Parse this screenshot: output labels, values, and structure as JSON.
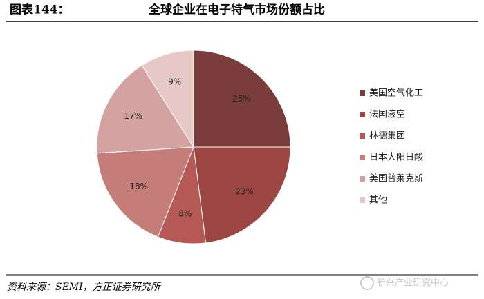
{
  "chart_data": {
    "type": "pie",
    "figure_label": "图表144：",
    "title": "全球企业在电子特气市场份额占比",
    "categories": [
      "美国空气化工",
      "法国液空",
      "林德集团",
      "日本大阳日酸",
      "美国普莱克斯",
      "其他"
    ],
    "values": [
      25,
      23,
      8,
      18,
      17,
      9
    ],
    "value_labels": [
      "25%",
      "23%",
      "8%",
      "18%",
      "17%",
      "9%"
    ],
    "colors": [
      "#7b3c3c",
      "#9c4644",
      "#b65853",
      "#c47d79",
      "#d3a3a1",
      "#e6c8c7"
    ],
    "legend": "right",
    "source": "资料来源：SEMI，方正证券研究所",
    "watermark": "新兴产业研究中心"
  }
}
